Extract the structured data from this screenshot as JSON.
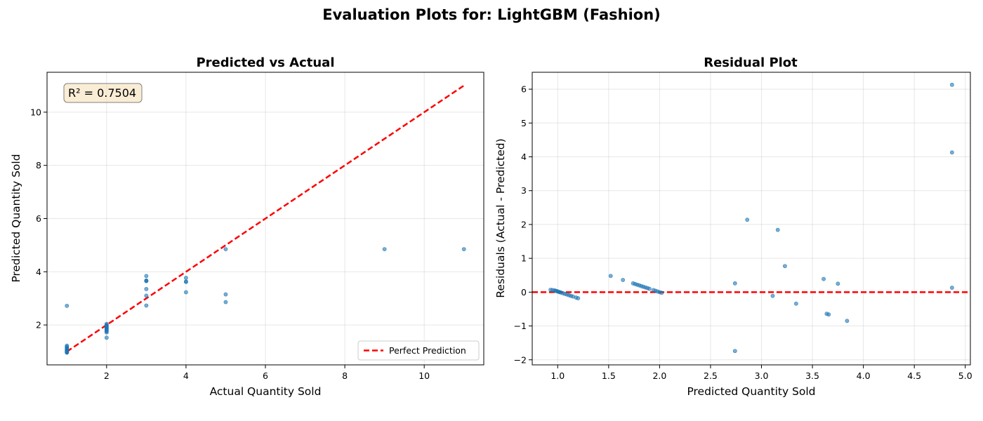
{
  "suptitle": "Evaluation Plots for: LightGBM (Fashion)",
  "chart_data": [
    {
      "type": "scatter",
      "title": "Predicted vs Actual",
      "xlabel": "Actual Quantity Sold",
      "ylabel": "Predicted Quantity Sold",
      "xlim": [
        0.5,
        11.5
      ],
      "ylim": [
        0.5,
        11.5
      ],
      "xticks": [
        2,
        4,
        6,
        8,
        10
      ],
      "yticks": [
        2,
        4,
        6,
        8,
        10
      ],
      "grid": true,
      "annotation": "R² = 0.7504",
      "legend": {
        "placement": "lower-right",
        "entries": [
          "Perfect Prediction"
        ]
      },
      "reference_line": {
        "name": "Perfect Prediction",
        "x": [
          1,
          11
        ],
        "y": [
          1,
          11
        ],
        "color": "#ff0000"
      },
      "point_color": "#1f77b4",
      "series": [
        {
          "x": [
            1,
            1,
            1,
            1,
            1,
            1,
            1,
            1,
            1,
            1,
            1,
            1,
            1,
            1,
            1,
            1,
            1,
            1,
            2,
            2,
            2,
            2,
            2,
            2,
            2,
            2,
            2,
            2,
            2,
            2,
            2,
            2,
            2,
            3,
            3,
            3,
            3,
            3,
            3,
            3,
            4,
            4,
            4,
            4,
            5,
            5,
            5,
            9,
            11
          ],
          "y": [
            2.72,
            1.22,
            1.18,
            1.15,
            1.12,
            1.1,
            1.08,
            1.06,
            1.05,
            1.04,
            1.03,
            1.02,
            1.01,
            1.0,
            0.99,
            0.98,
            0.97,
            0.96,
            2.04,
            2.0,
            1.98,
            1.96,
            1.94,
            1.92,
            1.9,
            1.88,
            1.86,
            1.84,
            1.82,
            1.79,
            1.76,
            1.72,
            1.52,
            3.84,
            3.67,
            3.65,
            3.35,
            3.1,
            2.73,
            3.66,
            3.77,
            3.62,
            3.23,
            3.63,
            4.85,
            3.15,
            2.86,
            4.85,
            4.85
          ]
        }
      ]
    },
    {
      "type": "scatter",
      "title": "Residual Plot",
      "xlabel": "Predicted Quantity Sold",
      "ylabel": "Residuals (Actual - Predicted)",
      "xlim": [
        0.75,
        5.05
      ],
      "ylim": [
        -2.15,
        6.5
      ],
      "xticks": [
        1.0,
        1.5,
        2.0,
        2.5,
        3.0,
        3.5,
        4.0,
        4.5,
        5.0
      ],
      "yticks": [
        -2,
        -1,
        0,
        1,
        2,
        3,
        4,
        5,
        6
      ],
      "grid": true,
      "reference_line": {
        "y": 0,
        "color": "#ff0000"
      },
      "point_color": "#1f77b4",
      "series": [
        {
          "x": [
            0.93,
            0.95,
            0.97,
            0.98,
            0.99,
            1.0,
            1.01,
            1.02,
            1.03,
            1.05,
            1.07,
            1.09,
            1.11,
            1.13,
            1.15,
            1.18,
            1.2,
            1.52,
            1.64,
            1.74,
            1.76,
            1.78,
            1.8,
            1.82,
            1.84,
            1.86,
            1.88,
            1.9,
            1.94,
            1.96,
            1.98,
            2.0,
            2.02,
            2.74,
            2.74,
            2.86,
            3.11,
            3.16,
            3.23,
            3.34,
            3.61,
            3.64,
            3.66,
            3.75,
            3.84,
            4.87,
            4.87,
            4.87
          ],
          "y": [
            0.07,
            0.06,
            0.05,
            0.04,
            0.03,
            0.02,
            0.01,
            0.0,
            -0.01,
            -0.03,
            -0.05,
            -0.07,
            -0.09,
            -0.11,
            -0.13,
            -0.16,
            -0.18,
            0.48,
            0.36,
            0.26,
            0.24,
            0.22,
            0.2,
            0.18,
            0.16,
            0.14,
            0.12,
            0.1,
            0.06,
            0.04,
            0.02,
            0.0,
            -0.02,
            0.26,
            -1.74,
            2.14,
            -0.11,
            1.84,
            0.77,
            -0.34,
            0.39,
            -0.64,
            -0.66,
            0.25,
            -0.85,
            6.13,
            4.13,
            0.13
          ]
        }
      ]
    }
  ]
}
